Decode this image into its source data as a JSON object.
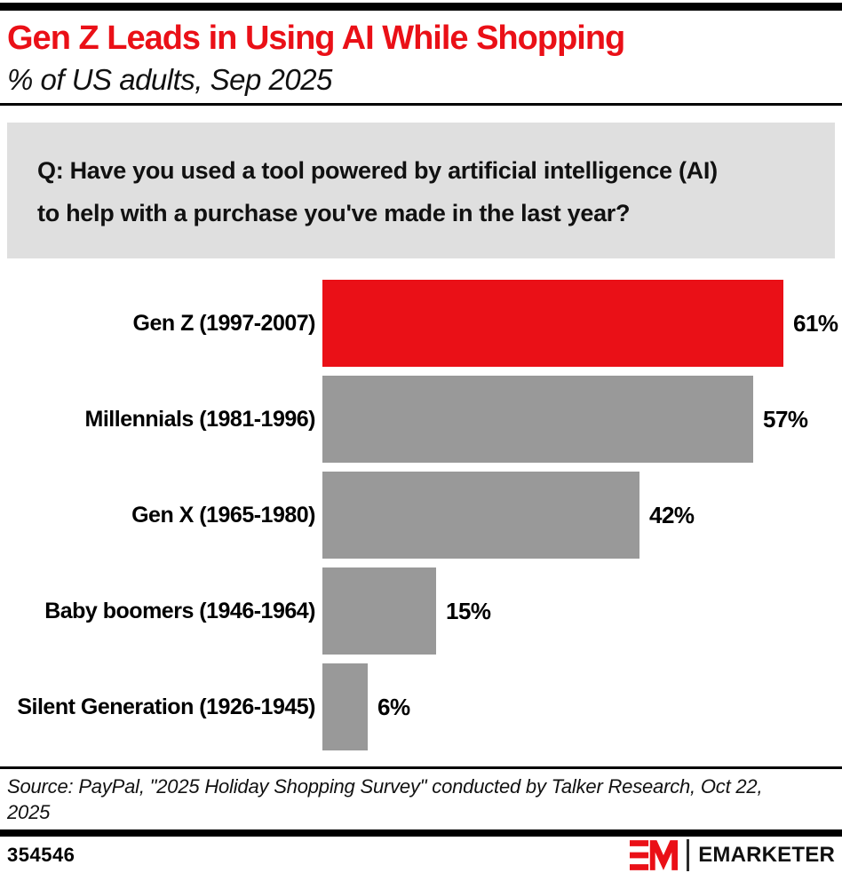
{
  "header": {
    "title": "Gen Z Leads in Using AI While Shopping",
    "subtitle": "% of US adults, Sep 2025"
  },
  "question": {
    "text": "Q: Have you used a tool powered by artificial intelligence (AI)\nto help with a purchase you've made in the last year?"
  },
  "chart_data": {
    "type": "bar",
    "orientation": "horizontal",
    "title": "Gen Z Leads in Using AI While Shopping",
    "subtitle": "% of US adults, Sep 2025",
    "categories": [
      "Gen Z (1997-2007)",
      "Millennials (1981-1996)",
      "Gen X (1965-1980)",
      "Baby boomers (1946-1964)",
      "Silent Generation (1926-1945)"
    ],
    "values": [
      61,
      57,
      42,
      15,
      6
    ],
    "value_labels": [
      "61%",
      "57%",
      "42%",
      "15%",
      "6%"
    ],
    "unit": "%",
    "xlim": [
      0,
      70
    ],
    "grid": false,
    "legend": false,
    "bar_colors": [
      "#EA1017",
      "#999999",
      "#999999",
      "#999999",
      "#999999"
    ],
    "highlight_category": "Gen Z (1997-2007)"
  },
  "footer": {
    "source": "Source: PayPal, \"2025 Holiday Shopping Survey\" conducted by Talker Research, Oct 22,\n2025",
    "chart_id": "354546",
    "brand_wordmark": "EMARKETER"
  },
  "colors": {
    "accent_red": "#EA1017",
    "bar_gray": "#999999",
    "question_box_bg": "#DFDFDF",
    "rule_black": "#000000"
  }
}
